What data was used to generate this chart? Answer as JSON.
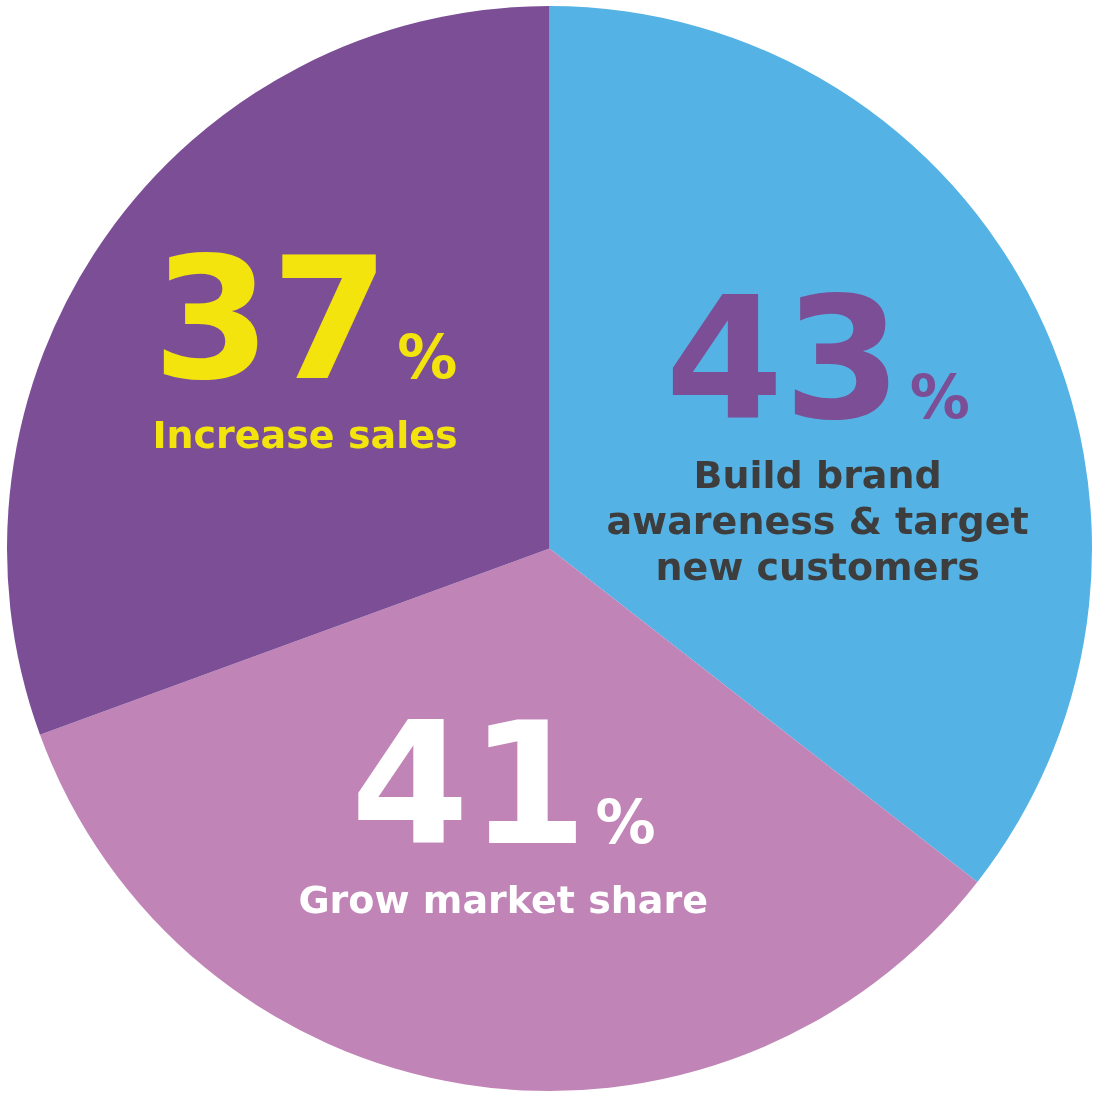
{
  "chart_data": {
    "type": "pie",
    "categories": [
      "Build brand awareness & target new customers",
      "Grow market share",
      "Increase sales"
    ],
    "values": [
      43,
      41,
      37
    ],
    "colors": [
      "#55b2e4",
      "#c084b7",
      "#7b4e96"
    ],
    "value_labels": [
      "43%",
      "41%",
      "37%"
    ],
    "legend": false
  }
}
